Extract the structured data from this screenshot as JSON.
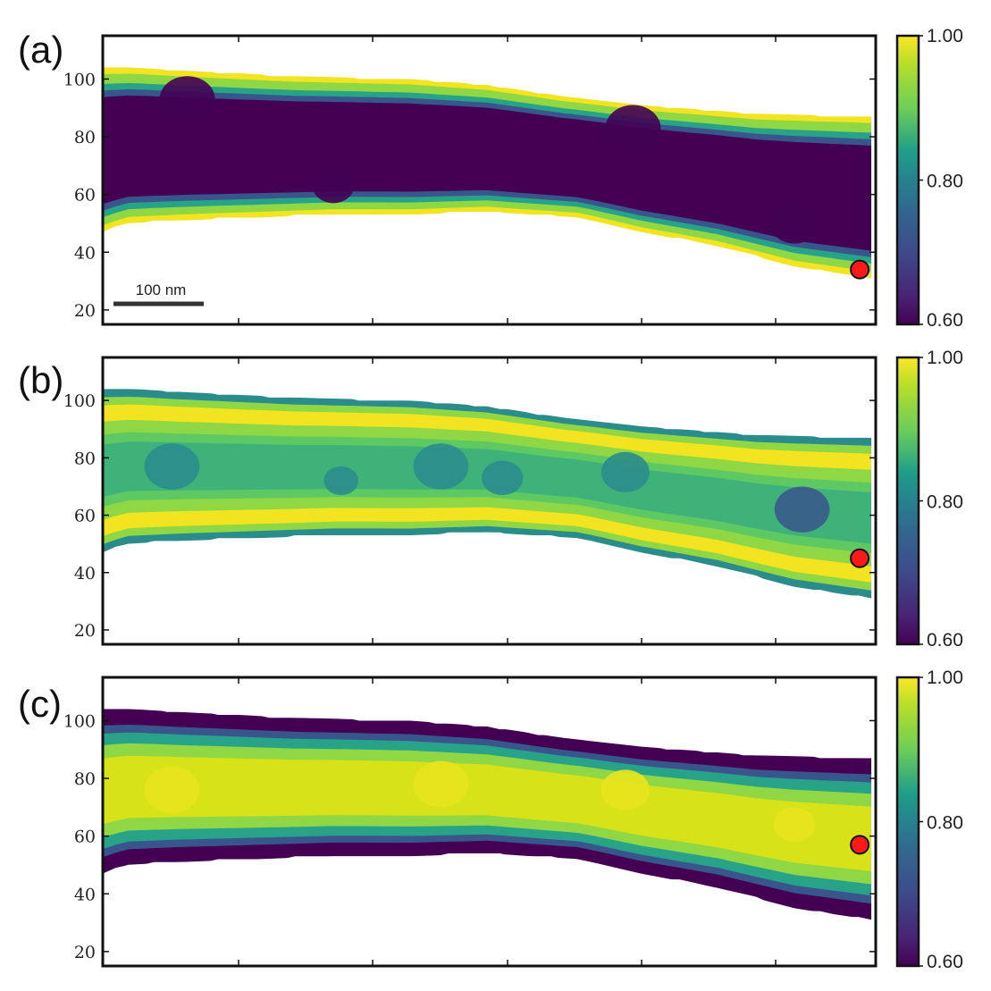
{
  "chart_data": [
    {
      "type": "heatmap",
      "panel_label": "(a)",
      "yticks": [
        "20",
        "40",
        "60",
        "80",
        "100"
      ],
      "ylim": [
        15,
        115
      ],
      "colorbar": {
        "min": 0.6,
        "max": 1.0,
        "ticks": [
          "0.60",
          "0.80",
          "1.00"
        ],
        "colormap": "viridis"
      },
      "scale_bar": "100 nm",
      "marker": {
        "x_frac": 0.985,
        "y": 34,
        "color": "#ff1a1a"
      },
      "pattern": "edge-bright",
      "blobs": [
        {
          "x_frac": 0.11,
          "y": 93,
          "r": 8
        },
        {
          "x_frac": 0.69,
          "y": 83,
          "r": 8
        },
        {
          "x_frac": 0.3,
          "y": 63,
          "r": 6
        },
        {
          "x_frac": 0.9,
          "y": 50,
          "r": 7
        }
      ]
    },
    {
      "type": "heatmap",
      "panel_label": "(b)",
      "yticks": [
        "20",
        "40",
        "60",
        "80",
        "100"
      ],
      "ylim": [
        15,
        115
      ],
      "colorbar": {
        "min": 0.6,
        "max": 1.0,
        "ticks": [
          "0.60",
          "0.80",
          "1.00"
        ],
        "colormap": "viridis"
      },
      "marker": {
        "x_frac": 0.985,
        "y": 45,
        "color": "#ff1a1a"
      },
      "pattern": "double-band",
      "blobs": [
        {
          "x_frac": 0.09,
          "y": 77,
          "r": 8
        },
        {
          "x_frac": 0.31,
          "y": 72,
          "r": 5
        },
        {
          "x_frac": 0.44,
          "y": 77,
          "r": 8
        },
        {
          "x_frac": 0.52,
          "y": 73,
          "r": 6
        },
        {
          "x_frac": 0.68,
          "y": 75,
          "r": 7
        },
        {
          "x_frac": 0.91,
          "y": 62,
          "r": 8
        }
      ]
    },
    {
      "type": "heatmap",
      "panel_label": "(c)",
      "yticks": [
        "20",
        "40",
        "60",
        "80",
        "100"
      ],
      "ylim": [
        15,
        115
      ],
      "colorbar": {
        "min": 0.6,
        "max": 1.0,
        "ticks": [
          "0.60",
          "0.80",
          "1.00"
        ],
        "colormap": "viridis"
      },
      "marker": {
        "x_frac": 0.985,
        "y": 57,
        "color": "#ff1a1a"
      },
      "pattern": "center-bright",
      "blobs": [
        {
          "x_frac": 0.09,
          "y": 76,
          "r": 8
        },
        {
          "x_frac": 0.44,
          "y": 78,
          "r": 8
        },
        {
          "x_frac": 0.68,
          "y": 76,
          "r": 7
        },
        {
          "x_frac": 0.9,
          "y": 64,
          "r": 6
        }
      ]
    }
  ]
}
